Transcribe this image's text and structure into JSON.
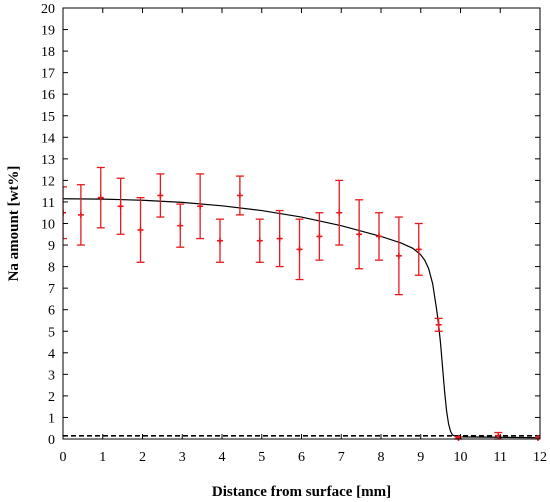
{
  "chart_data": {
    "type": "scatter",
    "xlabel": "Distance from surface [mm]",
    "ylabel": "Na amount [wt%]",
    "xlim": [
      0,
      12
    ],
    "ylim": [
      0,
      20
    ],
    "x_ticks": [
      0,
      1,
      2,
      3,
      4,
      5,
      6,
      7,
      8,
      9,
      10,
      11,
      12
    ],
    "y_ticks": [
      0,
      1,
      2,
      3,
      4,
      5,
      6,
      7,
      8,
      9,
      10,
      11,
      12,
      13,
      14,
      15,
      16,
      17,
      18,
      19,
      20
    ],
    "grid": false,
    "colors": {
      "measured": "#e8191c",
      "fit": "#000000",
      "baseline": "#000000"
    },
    "series": [
      {
        "type": "scatter-errorbar",
        "points": [
          {
            "x": 0.0,
            "y": 10.5,
            "err": 1.2
          },
          {
            "x": 0.45,
            "y": 10.4,
            "err": 1.4
          },
          {
            "x": 0.95,
            "y": 11.2,
            "err": 1.4
          },
          {
            "x": 1.45,
            "y": 10.8,
            "err": 1.3
          },
          {
            "x": 1.95,
            "y": 9.7,
            "err": 1.5
          },
          {
            "x": 2.45,
            "y": 11.3,
            "err": 1.0
          },
          {
            "x": 2.95,
            "y": 9.9,
            "err": 1.0
          },
          {
            "x": 3.45,
            "y": 10.8,
            "err": 1.5
          },
          {
            "x": 3.95,
            "y": 9.2,
            "err": 1.0
          },
          {
            "x": 4.45,
            "y": 11.3,
            "err": 0.9
          },
          {
            "x": 4.95,
            "y": 9.2,
            "err": 1.0
          },
          {
            "x": 5.45,
            "y": 9.3,
            "err": 1.3
          },
          {
            "x": 5.95,
            "y": 8.8,
            "err": 1.4
          },
          {
            "x": 6.45,
            "y": 9.4,
            "err": 1.1
          },
          {
            "x": 6.95,
            "y": 10.5,
            "err": 1.5
          },
          {
            "x": 7.45,
            "y": 9.5,
            "err": 1.6
          },
          {
            "x": 7.95,
            "y": 9.4,
            "err": 1.1
          },
          {
            "x": 8.45,
            "y": 8.5,
            "err": 1.8
          },
          {
            "x": 8.95,
            "y": 8.8,
            "err": 1.2
          },
          {
            "x": 9.45,
            "y": 5.3,
            "err": 0.3
          },
          {
            "x": 9.95,
            "y": 0.05,
            "err": 0.05
          },
          {
            "x": 10.95,
            "y": 0.15,
            "err": 0.15
          },
          {
            "x": 11.95,
            "y": 0.05,
            "err": 0.0
          }
        ]
      },
      {
        "type": "line",
        "style": "solid",
        "points": [
          [
            0,
            11.15
          ],
          [
            1,
            11.13
          ],
          [
            2,
            11.08
          ],
          [
            3,
            10.98
          ],
          [
            4,
            10.82
          ],
          [
            5,
            10.6
          ],
          [
            6,
            10.3
          ],
          [
            7,
            9.9
          ],
          [
            8,
            9.4
          ],
          [
            8.5,
            9.1
          ],
          [
            8.8,
            8.85
          ],
          [
            9.0,
            8.55
          ],
          [
            9.1,
            8.3
          ],
          [
            9.2,
            7.9
          ],
          [
            9.3,
            7.2
          ],
          [
            9.4,
            6.0
          ],
          [
            9.45,
            5.3
          ],
          [
            9.5,
            4.4
          ],
          [
            9.55,
            3.3
          ],
          [
            9.6,
            2.2
          ],
          [
            9.65,
            1.3
          ],
          [
            9.7,
            0.7
          ],
          [
            9.75,
            0.35
          ],
          [
            9.8,
            0.18
          ],
          [
            9.9,
            0.12
          ],
          [
            10,
            0.1
          ],
          [
            11,
            0.08
          ],
          [
            12,
            0.06
          ]
        ]
      },
      {
        "type": "line",
        "style": "dashed",
        "points": [
          [
            0,
            0.15
          ],
          [
            12,
            0.15
          ]
        ]
      }
    ]
  }
}
